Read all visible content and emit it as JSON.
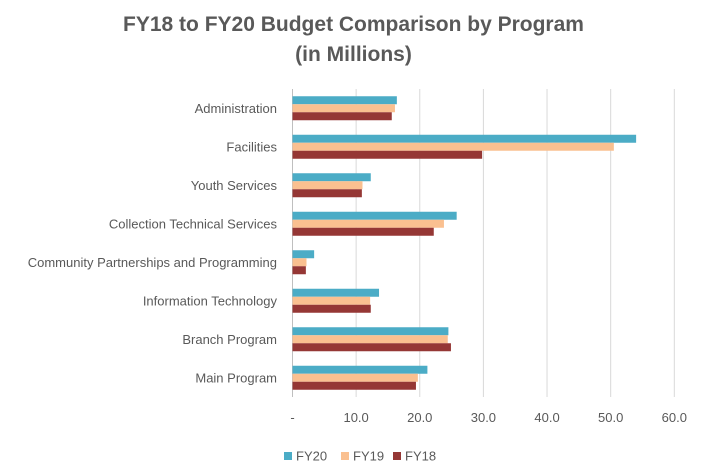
{
  "chart_data": {
    "type": "bar",
    "orientation": "horizontal",
    "title_lines": [
      "FY18 to FY20 Budget Comparison by Program",
      "(in Millions)"
    ],
    "title": "FY18 to FY20 Budget Comparison by Program (in Millions)",
    "xlabel": "",
    "ylabel": "",
    "categories": [
      "Administration",
      "Facilities",
      "Youth Services",
      "Collection Technical Services",
      "Community Partnerships and Programming",
      "Information Technology",
      "Branch Program",
      "Main Program"
    ],
    "series": [
      {
        "name": "FY20",
        "color": "#4BACC6",
        "values": [
          16.4,
          54.0,
          12.3,
          25.8,
          3.4,
          13.6,
          24.5,
          21.2
        ]
      },
      {
        "name": "FY19",
        "color": "#FAC090",
        "values": [
          16.1,
          50.5,
          11.0,
          23.8,
          2.2,
          12.2,
          24.4,
          19.7
        ]
      },
      {
        "name": "FY18",
        "color": "#953735",
        "values": [
          15.6,
          29.8,
          10.9,
          22.2,
          2.1,
          12.3,
          24.9,
          19.4
        ]
      }
    ],
    "xlim": [
      0,
      60
    ],
    "x_ticks": [
      0,
      10,
      20,
      30,
      40,
      50,
      60
    ],
    "x_tick_labels": [
      "-",
      "10.0",
      "20.0",
      "30.0",
      "40.0",
      "50.0",
      "60.0"
    ],
    "grid": "vertical",
    "legend": {
      "placement": "bottom",
      "order": [
        "FY20",
        "FY19",
        "FY18"
      ]
    }
  }
}
